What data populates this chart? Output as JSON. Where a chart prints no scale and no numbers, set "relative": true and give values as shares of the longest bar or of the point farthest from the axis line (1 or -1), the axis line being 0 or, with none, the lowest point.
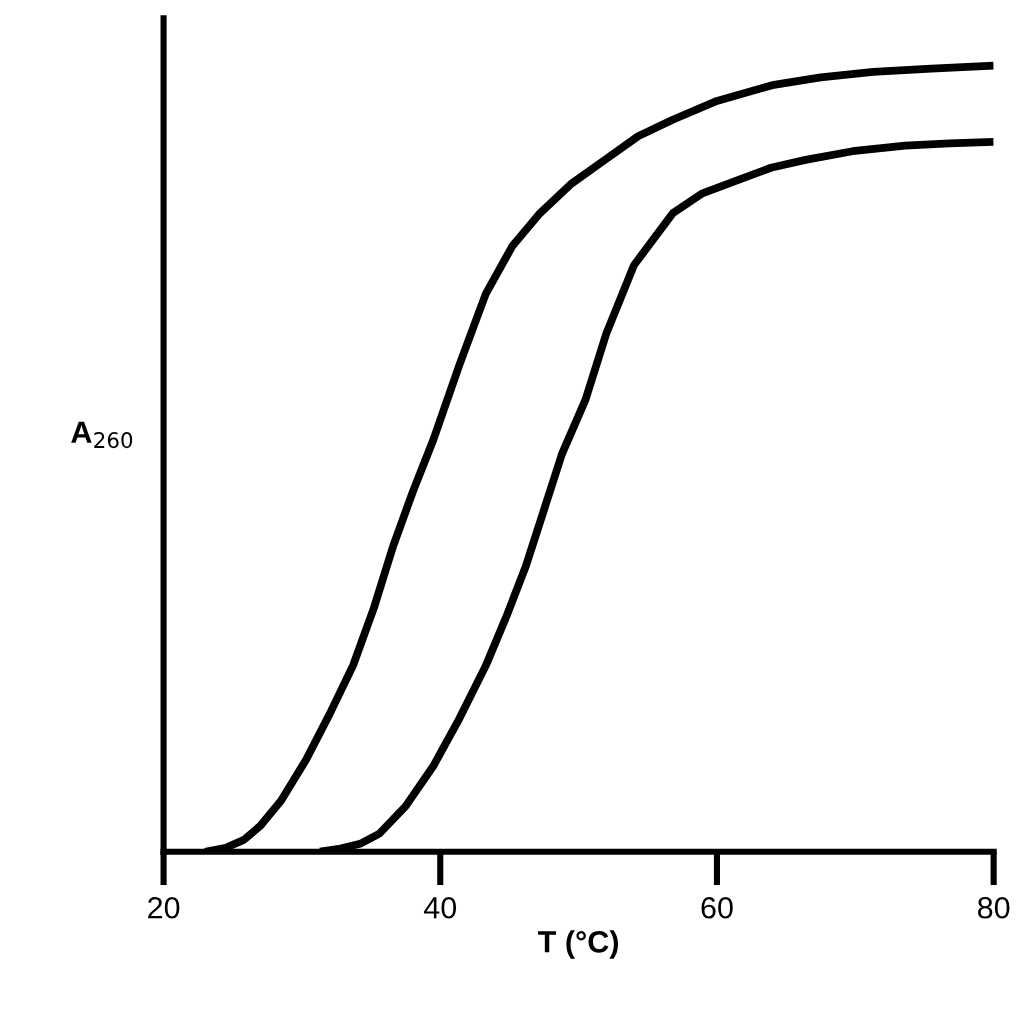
{
  "chart_data": {
    "type": "line",
    "relative": true,
    "xlabel": "T (°C)",
    "ylabel": "A$_{260}$",
    "xlim": [
      20,
      80
    ],
    "xticks": [
      20,
      40,
      60,
      80
    ],
    "grid": false,
    "marker": "none",
    "line_style": "solid",
    "series": [
      {
        "color": "#000000",
        "x": [
          23.0,
          24.5,
          25.8,
          27.0,
          28.5,
          30.3,
          32.0,
          33.7,
          35.2,
          36.6,
          38.0,
          39.5,
          41.4,
          43.3,
          45.2,
          47.2,
          49.5,
          51.9,
          54.3,
          56.8,
          60.0,
          64.0,
          67.5,
          71.3,
          75.5,
          80
        ],
        "values": [
          0,
          0.005,
          0.015,
          0.033,
          0.065,
          0.117,
          0.175,
          0.237,
          0.31,
          0.389,
          0.457,
          0.524,
          0.62,
          0.71,
          0.77,
          0.812,
          0.85,
          0.88,
          0.91,
          0.931,
          0.955,
          0.975,
          0.985,
          0.992,
          0.996,
          1.0
        ]
      },
      {
        "color": "#000000",
        "x": [
          31.3,
          32.8,
          34.2,
          35.6,
          37.5,
          39.5,
          41.4,
          43.3,
          44.8,
          46.2,
          47.5,
          48.8,
          50.5,
          52.0,
          54.0,
          56.8,
          58.9,
          61.6,
          63.9,
          66.4,
          69.8,
          73.6,
          76.8,
          80
        ],
        "values": [
          0,
          0.004,
          0.01,
          0.023,
          0.058,
          0.109,
          0.17,
          0.237,
          0.3,
          0.364,
          0.435,
          0.506,
          0.575,
          0.659,
          0.746,
          0.812,
          0.837,
          0.855,
          0.87,
          0.88,
          0.891,
          0.898,
          0.901,
          0.903
        ]
      }
    ]
  }
}
